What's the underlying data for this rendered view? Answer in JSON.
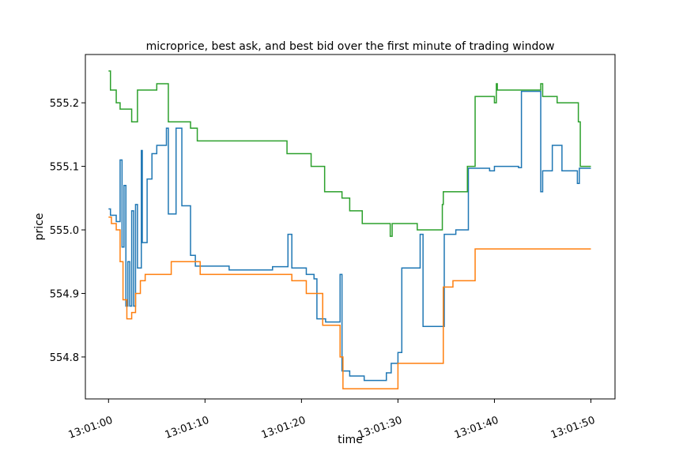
{
  "chart_data": {
    "type": "line",
    "title": "microprice, best ask, and best bid over the first minute of trading window",
    "xlabel": "time",
    "ylabel": "price",
    "x_ticks": [
      "13:01:00",
      "13:01:10",
      "13:01:20",
      "13:01:30",
      "13:01:40",
      "13:01:50"
    ],
    "y_ticks": [
      "554.8",
      "554.9",
      "555.0",
      "555.1",
      "555.2"
    ],
    "xlim_seconds_after_13_01_00": [
      -2.4,
      52.5
    ],
    "ylim": [
      554.734,
      555.276
    ],
    "grid": false,
    "legend": "none",
    "series": [
      {
        "color": "#1f77b4",
        "points": [
          [
            0,
            555.033
          ],
          [
            0.2,
            555.023
          ],
          [
            0.8,
            555.013
          ],
          [
            1.2,
            555.11
          ],
          [
            1.4,
            554.973
          ],
          [
            1.6,
            555.07
          ],
          [
            1.8,
            554.88
          ],
          [
            2.0,
            554.95
          ],
          [
            2.2,
            554.88
          ],
          [
            2.4,
            555.03
          ],
          [
            2.6,
            554.88
          ],
          [
            2.8,
            555.04
          ],
          [
            3.0,
            554.94
          ],
          [
            3.4,
            555.125
          ],
          [
            3.5,
            554.98
          ],
          [
            4.0,
            555.08
          ],
          [
            4.5,
            555.12
          ],
          [
            5.0,
            555.133
          ],
          [
            6.0,
            555.16
          ],
          [
            6.2,
            555.025
          ],
          [
            7.0,
            555.16
          ],
          [
            7.6,
            555.038
          ],
          [
            8.5,
            554.96
          ],
          [
            9.0,
            554.943
          ],
          [
            12.5,
            554.937
          ],
          [
            17.0,
            554.942
          ],
          [
            18.6,
            554.993
          ],
          [
            19.0,
            554.94
          ],
          [
            20.5,
            554.93
          ],
          [
            21.3,
            554.923
          ],
          [
            21.6,
            554.86
          ],
          [
            22.5,
            554.855
          ],
          [
            24.0,
            554.93
          ],
          [
            24.2,
            554.778
          ],
          [
            25.0,
            554.77
          ],
          [
            26.5,
            554.763
          ],
          [
            28.8,
            554.775
          ],
          [
            29.3,
            554.79
          ],
          [
            30.0,
            554.807
          ],
          [
            30.4,
            554.94
          ],
          [
            32.3,
            554.993
          ],
          [
            32.6,
            554.848
          ],
          [
            34.8,
            554.993
          ],
          [
            36.0,
            555.0
          ],
          [
            37.3,
            555.097
          ],
          [
            39.5,
            555.093
          ],
          [
            40.0,
            555.1
          ],
          [
            42.5,
            555.098
          ],
          [
            42.8,
            555.218
          ],
          [
            44.8,
            555.06
          ],
          [
            45.0,
            555.093
          ],
          [
            46.0,
            555.133
          ],
          [
            47.0,
            555.093
          ],
          [
            48.6,
            555.073
          ],
          [
            48.8,
            555.097
          ],
          [
            50.0,
            555.097
          ]
        ]
      },
      {
        "color": "#ff7f0e",
        "points": [
          [
            0,
            555.02
          ],
          [
            0.3,
            555.01
          ],
          [
            0.8,
            555.0
          ],
          [
            1.2,
            554.95
          ],
          [
            1.5,
            554.89
          ],
          [
            1.9,
            554.86
          ],
          [
            2.4,
            554.87
          ],
          [
            2.8,
            554.9
          ],
          [
            3.3,
            554.92
          ],
          [
            3.8,
            554.93
          ],
          [
            6.5,
            554.95
          ],
          [
            9.5,
            554.93
          ],
          [
            19.0,
            554.92
          ],
          [
            20.5,
            554.9
          ],
          [
            22.2,
            554.85
          ],
          [
            24.0,
            554.8
          ],
          [
            24.3,
            554.75
          ],
          [
            30.0,
            554.79
          ],
          [
            34.7,
            554.91
          ],
          [
            35.7,
            554.92
          ],
          [
            38.0,
            554.97
          ],
          [
            50.0,
            554.97
          ]
        ]
      },
      {
        "color": "#2ca02c",
        "points": [
          [
            0,
            555.25
          ],
          [
            0.2,
            555.22
          ],
          [
            0.8,
            555.2
          ],
          [
            1.2,
            555.19
          ],
          [
            2.4,
            555.17
          ],
          [
            3.0,
            555.22
          ],
          [
            5.0,
            555.23
          ],
          [
            6.2,
            555.17
          ],
          [
            8.5,
            555.16
          ],
          [
            9.2,
            555.14
          ],
          [
            18.5,
            555.12
          ],
          [
            21.0,
            555.1
          ],
          [
            22.4,
            555.06
          ],
          [
            23.2,
            555.06
          ],
          [
            24.2,
            555.05
          ],
          [
            25.0,
            555.03
          ],
          [
            26.3,
            555.01
          ],
          [
            29.2,
            554.99
          ],
          [
            29.4,
            555.01
          ],
          [
            32.0,
            555.0
          ],
          [
            34.6,
            555.04
          ],
          [
            34.7,
            555.06
          ],
          [
            37.2,
            555.1
          ],
          [
            38.0,
            555.21
          ],
          [
            40.0,
            555.2
          ],
          [
            40.2,
            555.23
          ],
          [
            40.3,
            555.22
          ],
          [
            44.8,
            555.23
          ],
          [
            45.0,
            555.21
          ],
          [
            46.5,
            555.2
          ],
          [
            48.7,
            555.17
          ],
          [
            48.9,
            555.1
          ],
          [
            50.0,
            555.1
          ]
        ]
      }
    ]
  }
}
